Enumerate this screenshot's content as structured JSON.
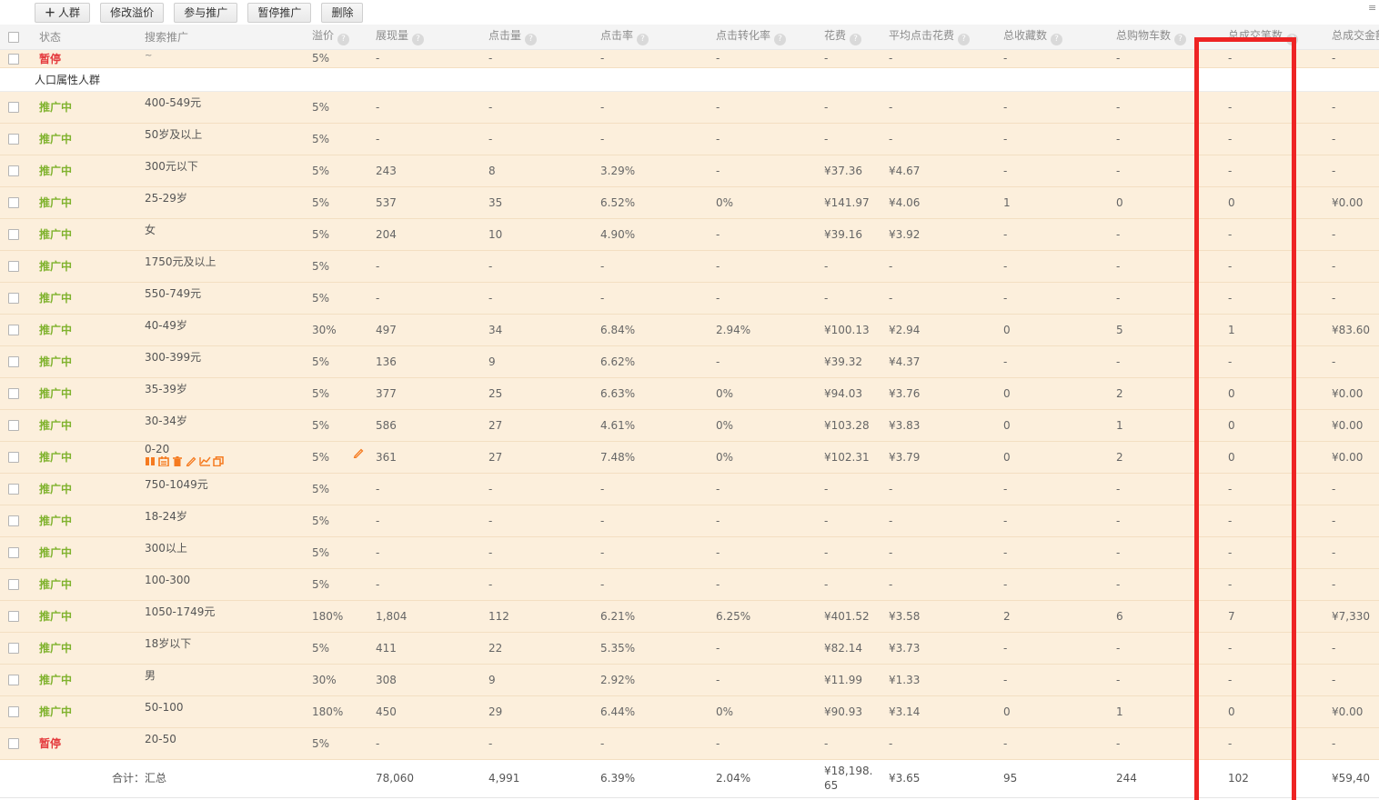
{
  "toolbar": {
    "add_button": {
      "icon": "＋",
      "label": "人群"
    },
    "buttons": [
      "修改溢价",
      "参与推广",
      "暂停推广",
      "删除"
    ]
  },
  "corner_icon": "≡",
  "highlight_color": "#ee2424",
  "status_colors": {
    "active": "#7fb22d",
    "paused": "#e4393c"
  },
  "table": {
    "columns": [
      {
        "key": "status",
        "label": "状态",
        "help": false
      },
      {
        "key": "name",
        "label": "搜索推广",
        "help": false
      },
      {
        "key": "premium",
        "label": "溢价",
        "help": true
      },
      {
        "key": "impressions",
        "label": "展现量",
        "help": true
      },
      {
        "key": "clicks",
        "label": "点击量",
        "help": true
      },
      {
        "key": "ctr",
        "label": "点击率",
        "help": true
      },
      {
        "key": "cvr",
        "label": "点击转化率",
        "help": true
      },
      {
        "key": "cost",
        "label": "花费",
        "help": true
      },
      {
        "key": "avg_cost",
        "label": "平均点击花费",
        "help": true
      },
      {
        "key": "favs",
        "label": "总收藏数",
        "help": true
      },
      {
        "key": "carts",
        "label": "总购物车数",
        "help": true
      },
      {
        "key": "orders",
        "label": "总成交笔数",
        "help": true
      },
      {
        "key": "amount",
        "label": "总成交金额",
        "help": true
      }
    ],
    "rows": [
      {
        "type": "data",
        "clipped": true,
        "status": "暂停",
        "status_type": "paused",
        "name": "~",
        "premium": "5%",
        "impressions": "-",
        "clicks": "-",
        "ctr": "-",
        "cvr": "-",
        "cost": "-",
        "avg_cost": "-",
        "favs": "-",
        "carts": "-",
        "orders": "-",
        "amount": "-"
      },
      {
        "type": "section",
        "label": "人口属性人群"
      },
      {
        "type": "data",
        "status": "推广中",
        "status_type": "active",
        "name": "400-549元",
        "premium": "5%",
        "impressions": "-",
        "clicks": "-",
        "ctr": "-",
        "cvr": "-",
        "cost": "-",
        "avg_cost": "-",
        "favs": "-",
        "carts": "-",
        "orders": "-",
        "amount": "-"
      },
      {
        "type": "data",
        "status": "推广中",
        "status_type": "active",
        "name": "50岁及以上",
        "premium": "5%",
        "impressions": "-",
        "clicks": "-",
        "ctr": "-",
        "cvr": "-",
        "cost": "-",
        "avg_cost": "-",
        "favs": "-",
        "carts": "-",
        "orders": "-",
        "amount": "-"
      },
      {
        "type": "data",
        "status": "推广中",
        "status_type": "active",
        "name": "300元以下",
        "premium": "5%",
        "impressions": "243",
        "clicks": "8",
        "ctr": "3.29%",
        "cvr": "-",
        "cost": "¥37.36",
        "avg_cost": "¥4.67",
        "favs": "-",
        "carts": "-",
        "orders": "-",
        "amount": "-"
      },
      {
        "type": "data",
        "status": "推广中",
        "status_type": "active",
        "name": "25-29岁",
        "premium": "5%",
        "impressions": "537",
        "clicks": "35",
        "ctr": "6.52%",
        "cvr": "0%",
        "cost": "¥141.97",
        "avg_cost": "¥4.06",
        "favs": "1",
        "carts": "0",
        "orders": "0",
        "amount": "¥0.00"
      },
      {
        "type": "data",
        "status": "推广中",
        "status_type": "active",
        "name": "女",
        "premium": "5%",
        "impressions": "204",
        "clicks": "10",
        "ctr": "4.90%",
        "cvr": "-",
        "cost": "¥39.16",
        "avg_cost": "¥3.92",
        "favs": "-",
        "carts": "-",
        "orders": "-",
        "amount": "-"
      },
      {
        "type": "data",
        "status": "推广中",
        "status_type": "active",
        "name": "1750元及以上",
        "premium": "5%",
        "impressions": "-",
        "clicks": "-",
        "ctr": "-",
        "cvr": "-",
        "cost": "-",
        "avg_cost": "-",
        "favs": "-",
        "carts": "-",
        "orders": "-",
        "amount": "-"
      },
      {
        "type": "data",
        "status": "推广中",
        "status_type": "active",
        "name": "550-749元",
        "premium": "5%",
        "impressions": "-",
        "clicks": "-",
        "ctr": "-",
        "cvr": "-",
        "cost": "-",
        "avg_cost": "-",
        "favs": "-",
        "carts": "-",
        "orders": "-",
        "amount": "-"
      },
      {
        "type": "data",
        "status": "推广中",
        "status_type": "active",
        "name": "40-49岁",
        "premium": "30%",
        "impressions": "497",
        "clicks": "34",
        "ctr": "6.84%",
        "cvr": "2.94%",
        "cost": "¥100.13",
        "avg_cost": "¥2.94",
        "favs": "0",
        "carts": "5",
        "orders": "1",
        "amount": "¥83.60"
      },
      {
        "type": "data",
        "status": "推广中",
        "status_type": "active",
        "name": "300-399元",
        "premium": "5%",
        "impressions": "136",
        "clicks": "9",
        "ctr": "6.62%",
        "cvr": "-",
        "cost": "¥39.32",
        "avg_cost": "¥4.37",
        "favs": "-",
        "carts": "-",
        "orders": "-",
        "amount": "-"
      },
      {
        "type": "data",
        "status": "推广中",
        "status_type": "active",
        "name": "35-39岁",
        "premium": "5%",
        "impressions": "377",
        "clicks": "25",
        "ctr": "6.63%",
        "cvr": "0%",
        "cost": "¥94.03",
        "avg_cost": "¥3.76",
        "favs": "0",
        "carts": "2",
        "orders": "0",
        "amount": "¥0.00"
      },
      {
        "type": "data",
        "status": "推广中",
        "status_type": "active",
        "name": "30-34岁",
        "premium": "5%",
        "impressions": "586",
        "clicks": "27",
        "ctr": "4.61%",
        "cvr": "0%",
        "cost": "¥103.28",
        "avg_cost": "¥3.83",
        "favs": "0",
        "carts": "1",
        "orders": "0",
        "amount": "¥0.00"
      },
      {
        "type": "data",
        "status": "推广中",
        "status_type": "active",
        "name": "0-20",
        "edit_pencil": true,
        "icons": [
          "pause-icon",
          "clipboard-icon",
          "trash-icon",
          "pencil-icon",
          "chart-icon",
          "copy-icon"
        ],
        "premium": "5%",
        "impressions": "361",
        "clicks": "27",
        "ctr": "7.48%",
        "cvr": "0%",
        "cost": "¥102.31",
        "avg_cost": "¥3.79",
        "favs": "0",
        "carts": "2",
        "orders": "0",
        "amount": "¥0.00"
      },
      {
        "type": "data",
        "status": "推广中",
        "status_type": "active",
        "name": "750-1049元",
        "premium": "5%",
        "impressions": "-",
        "clicks": "-",
        "ctr": "-",
        "cvr": "-",
        "cost": "-",
        "avg_cost": "-",
        "favs": "-",
        "carts": "-",
        "orders": "-",
        "amount": "-"
      },
      {
        "type": "data",
        "status": "推广中",
        "status_type": "active",
        "name": "18-24岁",
        "premium": "5%",
        "impressions": "-",
        "clicks": "-",
        "ctr": "-",
        "cvr": "-",
        "cost": "-",
        "avg_cost": "-",
        "favs": "-",
        "carts": "-",
        "orders": "-",
        "amount": "-"
      },
      {
        "type": "data",
        "status": "推广中",
        "status_type": "active",
        "name": "300以上",
        "premium": "5%",
        "impressions": "-",
        "clicks": "-",
        "ctr": "-",
        "cvr": "-",
        "cost": "-",
        "avg_cost": "-",
        "favs": "-",
        "carts": "-",
        "orders": "-",
        "amount": "-"
      },
      {
        "type": "data",
        "status": "推广中",
        "status_type": "active",
        "name": "100-300",
        "premium": "5%",
        "impressions": "-",
        "clicks": "-",
        "ctr": "-",
        "cvr": "-",
        "cost": "-",
        "avg_cost": "-",
        "favs": "-",
        "carts": "-",
        "orders": "-",
        "amount": "-"
      },
      {
        "type": "data",
        "status": "推广中",
        "status_type": "active",
        "name": "1050-1749元",
        "premium": "180%",
        "impressions": "1,804",
        "clicks": "112",
        "ctr": "6.21%",
        "cvr": "6.25%",
        "cost": "¥401.52",
        "avg_cost": "¥3.58",
        "favs": "2",
        "carts": "6",
        "orders": "7",
        "amount": "¥7,330"
      },
      {
        "type": "data",
        "status": "推广中",
        "status_type": "active",
        "name": "18岁以下",
        "premium": "5%",
        "impressions": "411",
        "clicks": "22",
        "ctr": "5.35%",
        "cvr": "-",
        "cost": "¥82.14",
        "avg_cost": "¥3.73",
        "favs": "-",
        "carts": "-",
        "orders": "-",
        "amount": "-"
      },
      {
        "type": "data",
        "status": "推广中",
        "status_type": "active",
        "name": "男",
        "premium": "30%",
        "impressions": "308",
        "clicks": "9",
        "ctr": "2.92%",
        "cvr": "-",
        "cost": "¥11.99",
        "avg_cost": "¥1.33",
        "favs": "-",
        "carts": "-",
        "orders": "-",
        "amount": "-"
      },
      {
        "type": "data",
        "status": "推广中",
        "status_type": "active",
        "name": "50-100",
        "premium": "180%",
        "impressions": "450",
        "clicks": "29",
        "ctr": "6.44%",
        "cvr": "0%",
        "cost": "¥90.93",
        "avg_cost": "¥3.14",
        "favs": "0",
        "carts": "1",
        "orders": "0",
        "amount": "¥0.00"
      },
      {
        "type": "data",
        "status": "暂停",
        "status_type": "paused",
        "name": "20-50",
        "premium": "5%",
        "impressions": "-",
        "clicks": "-",
        "ctr": "-",
        "cvr": "-",
        "cost": "-",
        "avg_cost": "-",
        "favs": "-",
        "carts": "-",
        "orders": "-",
        "amount": "-"
      }
    ],
    "summary": {
      "label": "合计：汇总",
      "impressions": "78,060",
      "clicks": "4,991",
      "ctr": "6.39%",
      "cvr": "2.04%",
      "cost": "¥18,198.65",
      "avg_cost": "¥3.65",
      "favs": "95",
      "carts": "244",
      "orders": "102",
      "amount": "¥59,40"
    }
  }
}
